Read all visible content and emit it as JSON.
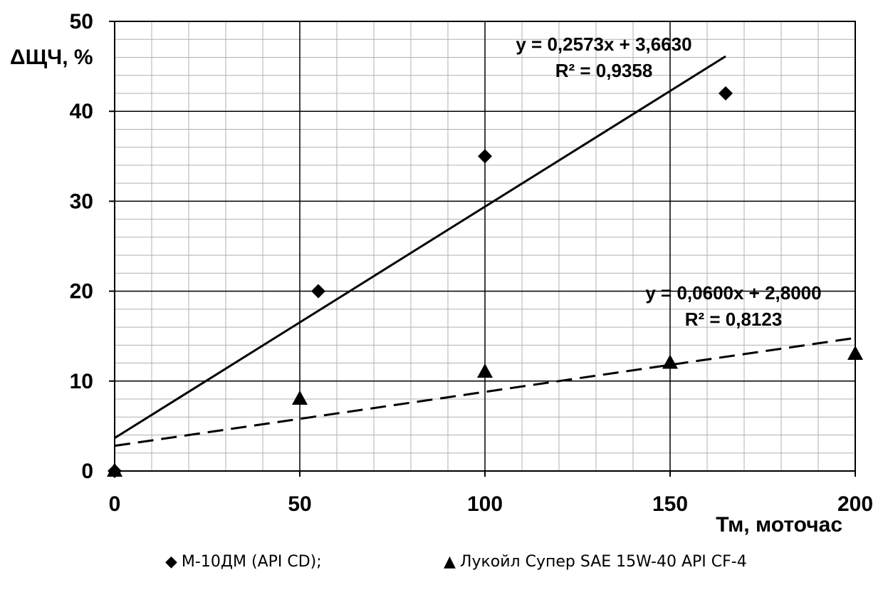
{
  "chart_data": {
    "type": "scatter",
    "title": "",
    "xlabel": "Тм, моточас",
    "ylabel": "ΔЩЧ, %",
    "xlim": [
      0,
      200
    ],
    "ylim": [
      0,
      50
    ],
    "x_ticks": [
      0,
      50,
      100,
      150,
      200
    ],
    "y_ticks": [
      0,
      10,
      20,
      30,
      40,
      50
    ],
    "x_tick_labels": [
      "0",
      "50",
      "100",
      "150",
      "200"
    ],
    "y_tick_labels": [
      "0",
      "10",
      "20",
      "30",
      "40",
      "50"
    ],
    "grid": {
      "major": true,
      "minor": true,
      "minor_x_step": 10,
      "minor_y_step": 2
    },
    "legend_position": "bottom",
    "series": [
      {
        "name": "М-10ДМ (API CD);",
        "marker": "diamond",
        "points": [
          [
            0,
            0
          ],
          [
            55,
            20
          ],
          [
            100,
            35
          ],
          [
            165,
            42
          ]
        ],
        "trendline": {
          "style": "solid",
          "slope": 0.2573,
          "intercept": 3.663,
          "x_range": [
            0,
            165
          ],
          "equation": "y = 0,2573x + 3,6630",
          "r2": "R² = 0,9358"
        }
      },
      {
        "name": "Лукойл Супер SAE 15W-40 API CF-4",
        "marker": "triangle",
        "points": [
          [
            0,
            0
          ],
          [
            50,
            8
          ],
          [
            100,
            11
          ],
          [
            150,
            12
          ],
          [
            200,
            13
          ]
        ],
        "trendline": {
          "style": "dashed",
          "slope": 0.06,
          "intercept": 2.8,
          "x_range": [
            0,
            200
          ],
          "equation": "y = 0,0600x + 2,8000",
          "r2": "R² = 0,8123"
        }
      }
    ]
  },
  "legend": {
    "marker1": "◆",
    "marker2": "▲"
  }
}
